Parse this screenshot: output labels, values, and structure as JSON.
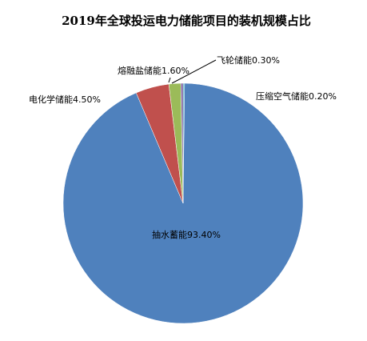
{
  "chart_data": {
    "type": "pie",
    "title": "2019年全球投运电力储能项目的装机规模占比",
    "start_angle_deg": 0,
    "direction": "clockwise",
    "slices": [
      {
        "name": "压缩空气储能",
        "value": 0.2,
        "label": "压缩空气储能0.20%",
        "color": "#4BACC6"
      },
      {
        "name": "抽水蓄能",
        "value": 93.4,
        "label": "抽水蓄能93.40%",
        "color": "#4F81BD"
      },
      {
        "name": "电化学储能",
        "value": 4.5,
        "label": "电化学储能4.50%",
        "color": "#C0504D"
      },
      {
        "name": "熔融盐储能",
        "value": 1.6,
        "label": "熔融盐储能1.60%",
        "color": "#9BBB59"
      },
      {
        "name": "飞轮储能",
        "value": 0.3,
        "label": "飞轮储能0.30%",
        "color": "#8064A2"
      }
    ]
  }
}
